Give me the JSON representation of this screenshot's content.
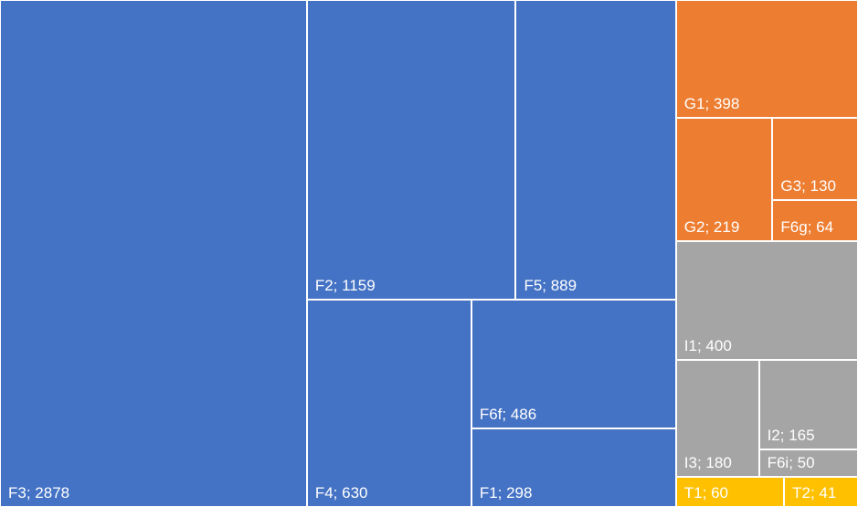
{
  "chart_data": {
    "type": "treemap",
    "series": [
      {
        "color": "#4472c4",
        "values": [
          2878,
          1159,
          889,
          630,
          486,
          298
        ],
        "value_labels": [
          "F3; 2878",
          "F2; 1159",
          "F5; 889",
          "F4; 630",
          "F6f; 486",
          "F1; 298"
        ]
      },
      {
        "color": "#ed7d31",
        "values": [
          398,
          219,
          130,
          64
        ],
        "value_labels": [
          "G1; 398",
          "G2; 219",
          "G3; 130",
          "F6g; 64"
        ]
      },
      {
        "color": "#a5a5a5",
        "values": [
          400,
          180,
          165,
          50
        ],
        "value_labels": [
          "I1; 400",
          "I3; 180",
          "I2; 165",
          "F6i; 50"
        ]
      },
      {
        "color": "#ffc000",
        "values": [
          60,
          41
        ],
        "value_labels": [
          "T1; 60",
          "T2; 41"
        ]
      }
    ]
  }
}
